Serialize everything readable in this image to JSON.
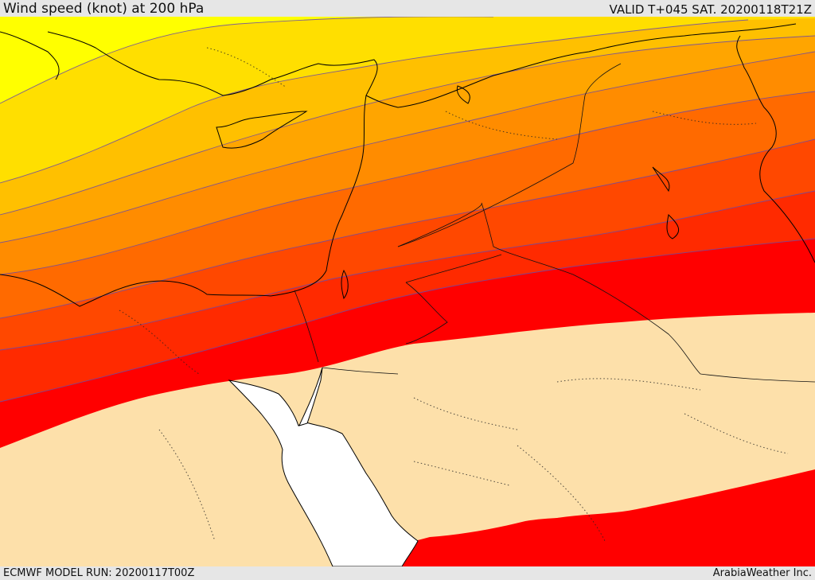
{
  "header": {
    "title": "Wind speed (knot) at 200 hPa",
    "valid": "VALID T+045 SAT. 20200118T21Z"
  },
  "footer": {
    "model_run": "ECMWF MODEL RUN: 20200117T00Z",
    "brand": "ArabiaWeather Inc."
  },
  "map": {
    "field": "wind-speed-200hPa",
    "color_bands_north_to_south": [
      "#ffff00",
      "#ffdf00",
      "#ffc000",
      "#ffa500",
      "#ff8c00",
      "#ff6a00",
      "#ff4800",
      "#ff2a00",
      "#ff0000"
    ],
    "calm_fill": "#fde0aa",
    "sea_fill": "#ffffff",
    "contour_color": "#6a4aa8",
    "coastline_color": "#000000"
  }
}
